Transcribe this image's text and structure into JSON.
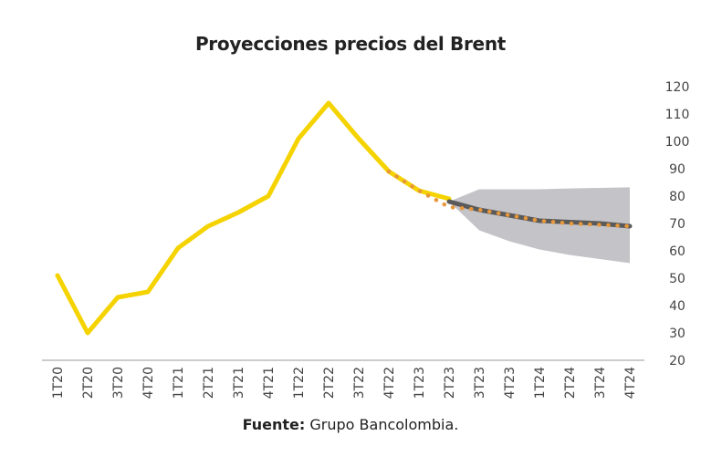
{
  "chart_data": {
    "type": "line",
    "title": "Proyecciones precios del Brent",
    "xlabel": "",
    "ylabel": "",
    "categories": [
      "1T20",
      "2T20",
      "3T20",
      "4T20",
      "1T21",
      "2T21",
      "3T21",
      "4T21",
      "1T22",
      "2T22",
      "3T22",
      "4T22",
      "1T23",
      "2T23",
      "3T23",
      "4T23",
      "1T24",
      "2T24",
      "3T24",
      "4T24"
    ],
    "ylim": [
      20,
      120
    ],
    "yticks": [
      20,
      30,
      40,
      50,
      60,
      70,
      80,
      90,
      100,
      110,
      120
    ],
    "y_axis_position": "right",
    "grid": false,
    "legend": "none",
    "series": [
      {
        "style": "solid",
        "color": "#F5D300",
        "values": [
          51,
          30,
          43,
          45,
          61,
          69,
          74,
          80,
          101,
          114,
          101,
          89,
          82,
          79,
          null,
          null,
          null,
          null,
          null,
          null
        ]
      },
      {
        "style": "dotted",
        "color": "#E8963A",
        "values": [
          null,
          null,
          null,
          null,
          null,
          null,
          null,
          null,
          null,
          null,
          null,
          89,
          82,
          76,
          75,
          73,
          71,
          70,
          69.5,
          69
        ]
      },
      {
        "style": "solid",
        "color": "#5A5A5A",
        "values": [
          null,
          null,
          null,
          null,
          null,
          null,
          null,
          null,
          null,
          null,
          null,
          null,
          null,
          78,
          75,
          73,
          71,
          70.5,
          70,
          69
        ]
      }
    ],
    "band": {
      "color": "#C4C4C8",
      "upper": [
        null,
        null,
        null,
        null,
        null,
        null,
        null,
        null,
        null,
        null,
        null,
        null,
        null,
        78,
        82.5,
        82.5,
        82.5,
        82.8,
        83,
        83.2
      ],
      "lower": [
        null,
        null,
        null,
        null,
        null,
        null,
        null,
        null,
        null,
        null,
        null,
        null,
        null,
        78,
        67.5,
        63.5,
        60.5,
        58.5,
        57,
        55.5
      ]
    }
  },
  "source": {
    "label": "Fuente:",
    "text": "Grupo Bancolombia."
  }
}
